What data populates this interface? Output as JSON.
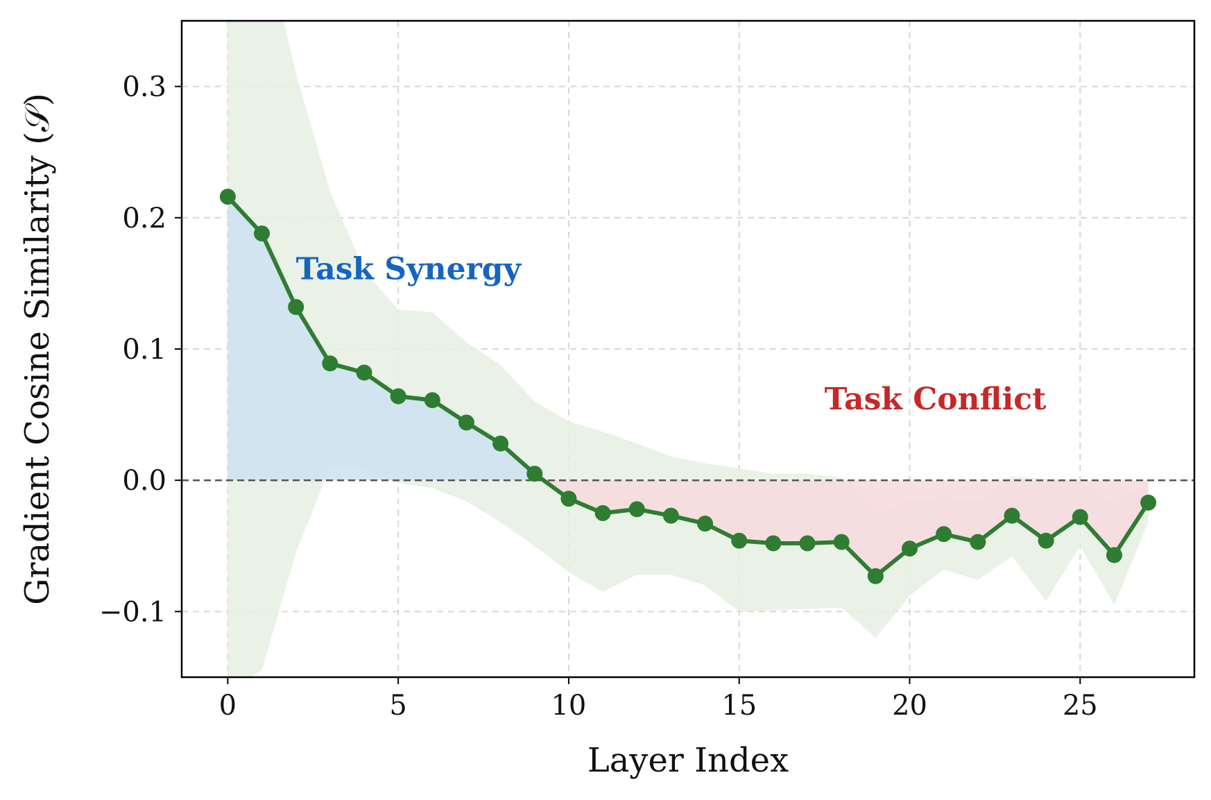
{
  "chart_data": {
    "type": "line",
    "xlabel": "Layer Index",
    "ylabel": "Gradient Cosine Similarity (𝒮)",
    "xlim": [
      -1.35,
      28.35
    ],
    "ylim": [
      -0.15,
      0.35
    ],
    "xticks": [
      0,
      5,
      10,
      15,
      20,
      25
    ],
    "yticks": [
      -0.1,
      0.0,
      0.1,
      0.2,
      0.3
    ],
    "ytick_labels": [
      "−0.1",
      "0.0",
      "0.1",
      "0.2",
      "0.3"
    ],
    "xtick_labels": [
      "0",
      "5",
      "10",
      "15",
      "20",
      "25"
    ],
    "grid": true,
    "series": [
      {
        "x": [
          0,
          1,
          2,
          3,
          4,
          5,
          6,
          7,
          8,
          9,
          10,
          11,
          12,
          13,
          14,
          15,
          16,
          17,
          18,
          19,
          20,
          21,
          22,
          23,
          24,
          25,
          26,
          27
        ],
        "values": [
          0.216,
          0.188,
          0.132,
          0.089,
          0.082,
          0.064,
          0.061,
          0.044,
          0.028,
          0.005,
          -0.014,
          -0.025,
          -0.022,
          -0.027,
          -0.033,
          -0.046,
          -0.048,
          -0.048,
          -0.047,
          -0.073,
          -0.052,
          -0.041,
          -0.047,
          -0.027,
          -0.046,
          -0.028,
          -0.057,
          -0.017
        ],
        "upper": [
          0.42,
          0.42,
          0.31,
          0.22,
          0.16,
          0.13,
          0.128,
          0.105,
          0.088,
          0.06,
          0.045,
          0.037,
          0.028,
          0.018,
          0.013,
          0.009,
          0.005,
          0.005,
          0.002,
          -0.025,
          -0.016,
          -0.013,
          -0.016,
          0.003,
          0.001,
          -0.001,
          -0.018,
          -0.002
        ],
        "lower": [
          -0.16,
          -0.145,
          -0.055,
          0.01,
          0.008,
          -0.002,
          -0.006,
          -0.016,
          -0.032,
          -0.05,
          -0.07,
          -0.085,
          -0.072,
          -0.072,
          -0.08,
          -0.1,
          -0.099,
          -0.098,
          -0.097,
          -0.12,
          -0.088,
          -0.068,
          -0.076,
          -0.058,
          -0.092,
          -0.05,
          -0.095,
          -0.032
        ]
      }
    ],
    "reference_line": 0.0,
    "annotations": [
      {
        "text": "Task Synergy",
        "x": 2.0,
        "y": 0.153,
        "color": "#1565c0"
      },
      {
        "text": "Task Conflict",
        "x": 17.5,
        "y": 0.054,
        "color": "#c62828"
      }
    ],
    "colors": {
      "line": "#2e7d32",
      "band": "#e6efe2",
      "synergy_fill": "#cce2f0",
      "conflict_fill": "#f7dadd",
      "zero_line": "#555555"
    }
  }
}
